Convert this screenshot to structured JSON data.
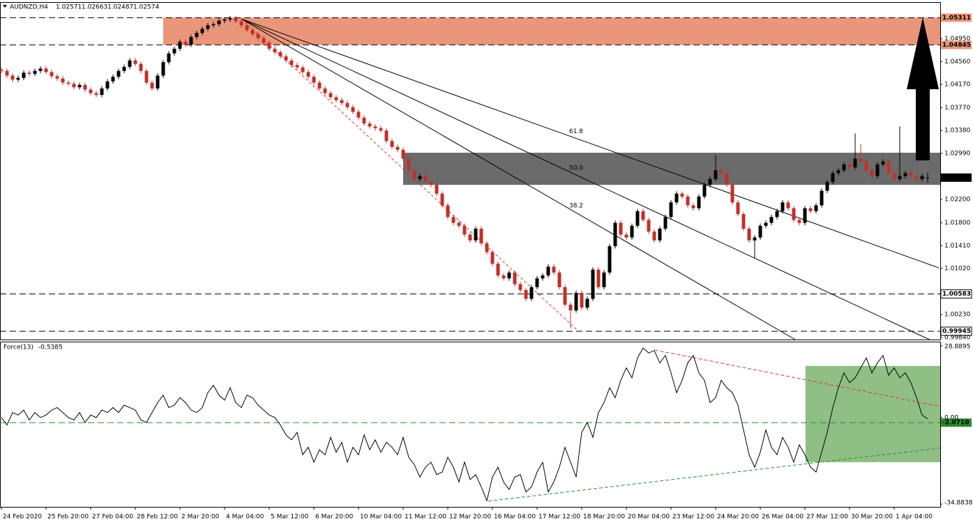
{
  "chart_data": [
    {
      "type": "candlestick",
      "title": "AUDNZD,H4",
      "open": [
        1.0442,
        1.044,
        1.0432,
        1.0425,
        1.0428,
        1.0437,
        1.0435,
        1.044,
        1.0444,
        1.0438,
        1.0431,
        1.0427,
        1.042,
        1.0418,
        1.0412,
        1.0416,
        1.0408,
        1.0402,
        1.0399,
        1.041,
        1.0422,
        1.043,
        1.044,
        1.0447,
        1.0458,
        1.0452,
        1.044,
        1.042,
        1.041,
        1.0432,
        1.0455,
        1.047,
        1.0478,
        1.049,
        1.0485,
        1.0498,
        1.0505,
        1.0512,
        1.0518,
        1.052,
        1.0526,
        1.0528,
        1.053,
        1.0525,
        1.0518,
        1.051,
        1.0503,
        1.0496,
        1.0488,
        1.0478,
        1.0472,
        1.0465,
        1.0458,
        1.045,
        1.0446,
        1.0438,
        1.043,
        1.042,
        1.041,
        1.0402,
        1.0395,
        1.039,
        1.0385,
        1.0378,
        1.037,
        1.036,
        1.035,
        1.0345,
        1.0342,
        1.0338,
        1.032,
        1.031,
        1.0305,
        1.029,
        1.027,
        1.0255,
        1.026,
        1.025,
        1.0245,
        1.023,
        1.021,
        1.019,
        1.018,
        1.0175,
        1.016,
        1.015,
        1.017,
        1.0145,
        1.013,
        1.011,
        1.009,
        1.0085,
        1.0095,
        1.0075,
        1.0065,
        1.005,
        1.007,
        1.0085,
        1.009,
        1.0105,
        1.0095,
        1.007,
        1.004,
        1.003,
        1.006,
        1.0035,
        1.005,
        1.01,
        1.007,
        1.0095,
        1.014,
        1.018,
        1.016,
        1.0155,
        1.0175,
        1.02,
        1.0185,
        1.0165,
        1.015,
        1.017,
        1.019,
        1.0215,
        1.023,
        1.0225,
        1.021,
        1.0205,
        1.0225,
        1.0245,
        1.0255,
        1.027,
        1.0265,
        1.0245,
        1.0215,
        1.0195,
        1.017,
        1.015,
        1.0155,
        1.0175,
        1.018,
        1.019,
        1.02,
        1.0215,
        1.0205,
        1.0185,
        1.018,
        1.0205,
        1.02,
        1.021,
        1.0235,
        1.025,
        1.0265,
        1.027,
        1.028,
        1.0275,
        1.029,
        1.0285,
        1.027,
        1.026,
        1.028,
        1.0285,
        1.0265,
        1.0255,
        1.026,
        1.0265,
        1.026,
        1.0255,
        1.02571
      ],
      "high": [
        1.0446,
        1.0444,
        1.0436,
        1.0432,
        1.0441,
        1.0441,
        1.0444,
        1.0448,
        1.0448,
        1.0442,
        1.0435,
        1.0431,
        1.0424,
        1.0422,
        1.042,
        1.042,
        1.0412,
        1.0406,
        1.0414,
        1.0426,
        1.0434,
        1.0444,
        1.0451,
        1.0462,
        1.0462,
        1.0456,
        1.0444,
        1.0424,
        1.0436,
        1.0459,
        1.0474,
        1.0482,
        1.0494,
        1.0494,
        1.0502,
        1.0509,
        1.0516,
        1.0522,
        1.0524,
        1.053,
        1.0532,
        1.0534,
        1.0534,
        1.0529,
        1.0522,
        1.0514,
        1.0507,
        1.05,
        1.0492,
        1.0482,
        1.0476,
        1.0469,
        1.0462,
        1.0454,
        1.045,
        1.0442,
        1.0434,
        1.0424,
        1.0414,
        1.0406,
        1.0399,
        1.0394,
        1.0389,
        1.0382,
        1.0374,
        1.0364,
        1.0354,
        1.0349,
        1.0346,
        1.0342,
        1.0324,
        1.0314,
        1.0309,
        1.0294,
        1.0274,
        1.0264,
        1.0264,
        1.0254,
        1.0249,
        1.0234,
        1.0214,
        1.0194,
        1.0184,
        1.0179,
        1.0164,
        1.0174,
        1.0174,
        1.0149,
        1.0134,
        1.0114,
        1.0094,
        1.0099,
        1.0099,
        1.0079,
        1.0069,
        1.0074,
        1.0089,
        1.0094,
        1.0109,
        1.0109,
        1.0099,
        1.0074,
        1.0044,
        1.0064,
        1.0064,
        1.0054,
        1.0104,
        1.0104,
        1.0099,
        1.0144,
        1.0184,
        1.0184,
        1.0164,
        1.0179,
        1.0204,
        1.0204,
        1.0189,
        1.0169,
        1.0174,
        1.0194,
        1.0219,
        1.0234,
        1.0234,
        1.0229,
        1.0214,
        1.0229,
        1.0249,
        1.0259,
        1.0296,
        1.0274,
        1.0269,
        1.0249,
        1.0219,
        1.0199,
        1.0174,
        1.0159,
        1.0179,
        1.0184,
        1.0194,
        1.0204,
        1.0219,
        1.0219,
        1.0209,
        1.0189,
        1.0209,
        1.0209,
        1.0214,
        1.0239,
        1.0254,
        1.0269,
        1.0274,
        1.0284,
        1.0284,
        1.0333,
        1.0315,
        1.0289,
        1.0274,
        1.0284,
        1.0289,
        1.0289,
        1.0269,
        1.0345,
        1.0269,
        1.0269,
        1.0264,
        1.0264,
        1.02663
      ],
      "low": [
        1.0436,
        1.0428,
        1.0421,
        1.0421,
        1.0424,
        1.0431,
        1.0431,
        1.0436,
        1.0434,
        1.0427,
        1.0423,
        1.0416,
        1.0414,
        1.0408,
        1.0408,
        1.0404,
        1.0398,
        1.0395,
        1.0395,
        1.0406,
        1.0418,
        1.0426,
        1.0436,
        1.0443,
        1.0448,
        1.0436,
        1.0416,
        1.0406,
        1.0406,
        1.0428,
        1.0451,
        1.0466,
        1.0474,
        1.0481,
        1.0481,
        1.0494,
        1.0501,
        1.0508,
        1.0514,
        1.0516,
        1.0522,
        1.0524,
        1.0521,
        1.0514,
        1.0506,
        1.0499,
        1.0492,
        1.0484,
        1.0474,
        1.0468,
        1.0461,
        1.0454,
        1.0446,
        1.0442,
        1.0434,
        1.0426,
        1.0416,
        1.0406,
        1.0398,
        1.0391,
        1.0386,
        1.0381,
        1.0374,
        1.0366,
        1.0356,
        1.0346,
        1.0341,
        1.0338,
        1.0334,
        1.0316,
        1.0306,
        1.0301,
        1.0286,
        1.0266,
        1.0251,
        1.0251,
        1.0246,
        1.0241,
        1.0226,
        1.0206,
        1.0186,
        1.0176,
        1.0171,
        1.0156,
        1.0146,
        1.0146,
        1.0141,
        1.0126,
        1.0106,
        1.0086,
        1.0081,
        1.0081,
        1.0071,
        1.0061,
        1.0046,
        1.0046,
        1.0066,
        1.0081,
        1.0086,
        1.0091,
        1.0066,
        1.0036,
        0.9999,
        1.0026,
        1.0031,
        1.0031,
        1.0046,
        1.0066,
        1.0066,
        1.0091,
        1.0136,
        1.0156,
        1.0151,
        1.0151,
        1.0171,
        1.0181,
        1.0161,
        1.0146,
        1.0146,
        1.0166,
        1.0186,
        1.0211,
        1.0221,
        1.0206,
        1.0201,
        1.0201,
        1.0221,
        1.0241,
        1.0251,
        1.0261,
        1.0241,
        1.0211,
        1.0191,
        1.0166,
        1.0146,
        1.012,
        1.0151,
        1.0171,
        1.0176,
        1.0186,
        1.0196,
        1.0201,
        1.0181,
        1.0176,
        1.0176,
        1.0196,
        1.0196,
        1.0206,
        1.0231,
        1.0246,
        1.0261,
        1.0266,
        1.0271,
        1.0271,
        1.0281,
        1.0266,
        1.0256,
        1.0256,
        1.0276,
        1.0261,
        1.0251,
        1.0251,
        1.0256,
        1.0256,
        1.0251,
        1.0251,
        1.02487
      ],
      "close": [
        1.044,
        1.0432,
        1.0425,
        1.0428,
        1.0437,
        1.0435,
        1.044,
        1.0444,
        1.0438,
        1.0431,
        1.0427,
        1.042,
        1.0418,
        1.0412,
        1.0416,
        1.0408,
        1.0402,
        1.0399,
        1.041,
        1.0422,
        1.043,
        1.044,
        1.0447,
        1.0458,
        1.0452,
        1.044,
        1.042,
        1.041,
        1.0432,
        1.0455,
        1.047,
        1.0478,
        1.049,
        1.0485,
        1.0498,
        1.0505,
        1.0512,
        1.0518,
        1.052,
        1.0526,
        1.0528,
        1.053,
        1.0525,
        1.0518,
        1.051,
        1.0503,
        1.0496,
        1.0488,
        1.0478,
        1.0472,
        1.0465,
        1.0458,
        1.045,
        1.0446,
        1.0438,
        1.043,
        1.042,
        1.041,
        1.0402,
        1.0395,
        1.039,
        1.0385,
        1.0378,
        1.037,
        1.036,
        1.035,
        1.0345,
        1.0342,
        1.0338,
        1.032,
        1.031,
        1.0305,
        1.029,
        1.027,
        1.0255,
        1.026,
        1.025,
        1.0245,
        1.023,
        1.021,
        1.019,
        1.018,
        1.0175,
        1.016,
        1.015,
        1.017,
        1.0145,
        1.013,
        1.011,
        1.009,
        1.0085,
        1.0095,
        1.0075,
        1.0065,
        1.005,
        1.007,
        1.0085,
        1.009,
        1.0105,
        1.0095,
        1.007,
        1.004,
        1.003,
        1.006,
        1.0035,
        1.005,
        1.01,
        1.007,
        1.0095,
        1.014,
        1.018,
        1.016,
        1.0155,
        1.0175,
        1.02,
        1.0185,
        1.0165,
        1.015,
        1.017,
        1.019,
        1.0215,
        1.023,
        1.0225,
        1.021,
        1.0205,
        1.0225,
        1.0245,
        1.0255,
        1.027,
        1.0265,
        1.0245,
        1.0215,
        1.0195,
        1.017,
        1.015,
        1.0155,
        1.0175,
        1.018,
        1.019,
        1.02,
        1.0215,
        1.0205,
        1.0185,
        1.018,
        1.0205,
        1.02,
        1.021,
        1.0235,
        1.025,
        1.0265,
        1.027,
        1.028,
        1.0275,
        1.029,
        1.0285,
        1.027,
        1.026,
        1.028,
        1.0285,
        1.0265,
        1.0255,
        1.026,
        1.0265,
        1.026,
        1.0255,
        1.026,
        1.02574
      ],
      "up_color": "#000000",
      "down_color": "#c0302b",
      "ylim": [
        0.99803,
        1.05554
      ],
      "yticks": [
        {
          "value": 1.0495,
          "label": "1.04950"
        },
        {
          "value": 1.0456,
          "label": "1.04560"
        },
        {
          "value": 1.0417,
          "label": "1.04170"
        },
        {
          "value": 1.0377,
          "label": "1.03770"
        },
        {
          "value": 1.0338,
          "label": "1.03380"
        },
        {
          "value": 1.0299,
          "label": "1.02990"
        },
        {
          "value": 1.022,
          "label": "1.02200"
        },
        {
          "value": 1.018,
          "label": "1.01800"
        },
        {
          "value": 1.0141,
          "label": "1.01410"
        },
        {
          "value": 1.0102,
          "label": "1.01020"
        },
        {
          "value": 1.0023,
          "label": "1.00230"
        },
        {
          "value": 0.9984,
          "label": "0.99840"
        }
      ],
      "xticks": [
        {
          "value": 0,
          "label": "24 Feb 2020"
        },
        {
          "value": 8,
          "label": "25 Feb 20:00"
        },
        {
          "value": 16,
          "label": "27 Feb 04:00"
        },
        {
          "value": 24,
          "label": "28 Feb 12:00"
        },
        {
          "value": 32,
          "label": "2 Mar 20:00"
        },
        {
          "value": 40,
          "label": "4 Mar 04:00"
        },
        {
          "value": 48,
          "label": "5 Mar 12:00"
        },
        {
          "value": 56,
          "label": "6 Mar 20:00"
        },
        {
          "value": 64,
          "label": "10 Mar 04:00"
        },
        {
          "value": 72,
          "label": "11 Mar 12:00"
        },
        {
          "value": 80,
          "label": "12 Mar 20:00"
        },
        {
          "value": 88,
          "label": "16 Mar 04:00"
        },
        {
          "value": 96,
          "label": "17 Mar 12:00"
        },
        {
          "value": 104,
          "label": "18 Mar 20:00"
        },
        {
          "value": 112,
          "label": "20 Mar 04:00"
        },
        {
          "value": 120,
          "label": "23 Mar 12:00"
        },
        {
          "value": 128,
          "label": "24 Mar 20:00"
        },
        {
          "value": 136,
          "label": "26 Mar 04:00"
        },
        {
          "value": 144,
          "label": "27 Mar 12:00"
        },
        {
          "value": 152,
          "label": "30 Mar 20:00"
        },
        {
          "value": 160,
          "label": "1 Apr 04:00"
        }
      ],
      "zones": [
        {
          "from": 1.04845,
          "to": 1.05311,
          "start": 29,
          "color": "#e9967a"
        },
        {
          "from": 1.0245,
          "to": 1.03,
          "start": 72,
          "color": "#6b6b6b"
        }
      ],
      "levels": [
        1.05311,
        1.04845,
        1.00583,
        0.99945
      ],
      "trendlines": [
        {
          "from": [
            43,
            1.0529
          ],
          "to": [
            168,
            1.0103
          ],
          "label": "61.8",
          "color": "#000000"
        },
        {
          "from": [
            43,
            1.0529
          ],
          "to": [
            166.3,
            0.99803
          ],
          "label": "50.0",
          "color": "#000000"
        },
        {
          "from": [
            43,
            1.0529
          ],
          "to": [
            142.25,
            0.99803
          ],
          "label": "38.2",
          "color": "#000000"
        },
        {
          "from": [
            43,
            1.0529
          ],
          "to": [
            103.4,
            0.99947
          ],
          "color": "#d43a2a",
          "dashed": true
        }
      ]
    },
    {
      "type": "line",
      "title": "Force(13)",
      "color": "#000000",
      "values": [
        0,
        -3,
        2,
        1,
        3,
        -1,
        2,
        0,
        1,
        3,
        4,
        2,
        0,
        -1,
        2,
        -2,
        1,
        0,
        3,
        2,
        4,
        2,
        5,
        4,
        3,
        -1,
        -2,
        2,
        6,
        9,
        4,
        5,
        8,
        6,
        3,
        2,
        4,
        10,
        13,
        9,
        7,
        12,
        6,
        4,
        9,
        8,
        5,
        3,
        1,
        0,
        -3,
        -7,
        -9,
        -6,
        -15,
        -12,
        -18,
        -13,
        -15,
        -8,
        -14,
        -10,
        -18,
        -12,
        -15,
        -7,
        -13,
        -9,
        -14,
        -10,
        -12,
        -15,
        -8,
        -16,
        -19,
        -24,
        -20,
        -18,
        -23,
        -22,
        -16,
        -20,
        -26,
        -18,
        -25,
        -23,
        -28,
        -33.5,
        -24,
        -20,
        -26,
        -29,
        -24,
        -23,
        -30,
        -28,
        -22,
        -18,
        -30,
        -26,
        -20,
        -12,
        -18,
        -24,
        -6,
        -2,
        -8,
        2,
        6,
        12,
        8,
        15,
        20,
        16,
        24,
        28,
        26,
        27,
        22,
        25,
        18,
        10,
        15,
        22,
        25,
        18,
        15,
        6,
        8,
        15,
        12,
        10,
        5,
        -5,
        -15,
        -20,
        -14,
        -5,
        -12,
        -15,
        -8,
        -12,
        -18,
        -11,
        -15,
        -20,
        -22,
        -14,
        -6,
        4,
        12,
        18,
        14,
        16,
        20,
        24,
        18,
        22,
        25,
        17,
        20,
        16,
        18,
        14,
        8,
        1,
        -0.5385
      ],
      "ylim": [
        -34.8838,
        28.8895
      ],
      "yticks": [
        28.8895,
        {
          "value": 0,
          "label": "0.00"
        },
        -34.8838
      ],
      "level": {
        "value": -2.071,
        "label": "-2.0710"
      },
      "box": {
        "from": [
          144.1,
          20.8
        ],
        "to": [
          168.25,
          -18
        ],
        "color": "#8fbf85"
      },
      "trendlines": [
        {
          "from": [
            117.1,
            27.2
          ],
          "to": [
            168.25,
            4.5
          ],
          "color": "#d43a2a"
        },
        {
          "from": [
            87.25,
            -33.7
          ],
          "to": [
            168.25,
            -12.3
          ],
          "color": "#2e8b2e"
        }
      ]
    }
  ]
}
